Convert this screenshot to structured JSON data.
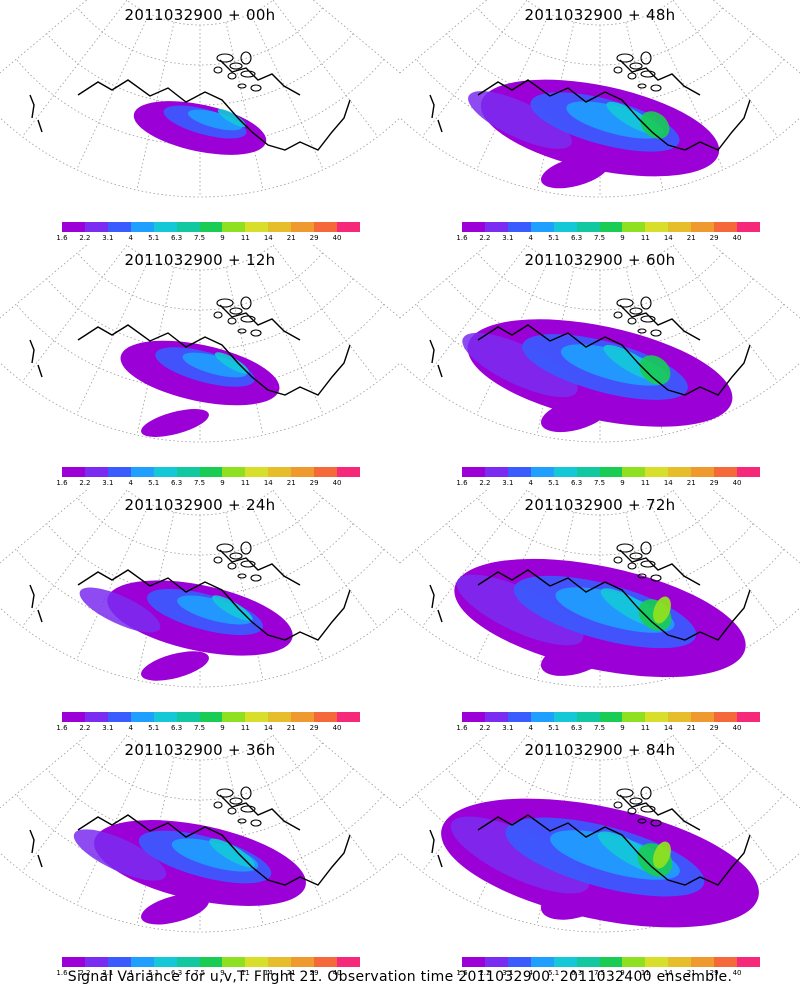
{
  "panels": [
    {
      "title": "2011032900  +  00h",
      "level": 0
    },
    {
      "title": "2011032900  +  48h",
      "level": 4
    },
    {
      "title": "2011032900  +  12h",
      "level": 1
    },
    {
      "title": "2011032900  +  60h",
      "level": 5
    },
    {
      "title": "2011032900  +  24h",
      "level": 2
    },
    {
      "title": "2011032900  +  72h",
      "level": 6
    },
    {
      "title": "2011032900  +  36h",
      "level": 3
    },
    {
      "title": "2011032900  +  84h",
      "level": 7
    }
  ],
  "colorbar": {
    "colors": [
      "#9b00d6",
      "#7a2cf0",
      "#3a5cff",
      "#1fa0ff",
      "#14c8d8",
      "#12c8a0",
      "#1acb54",
      "#8ee020",
      "#d7df2a",
      "#e6bd2a",
      "#ef9a2e",
      "#f5683a",
      "#f5287a"
    ],
    "labels": [
      "1.6",
      "2.2",
      "3.1",
      "4",
      "5.1",
      "6.3",
      "7.5",
      "9",
      "11",
      "14",
      "21",
      "29",
      "40"
    ]
  },
  "caption": "Signal Variance for u,v,T. Flight 21. Observation time 2011032900. 2011032400 ensemble."
}
